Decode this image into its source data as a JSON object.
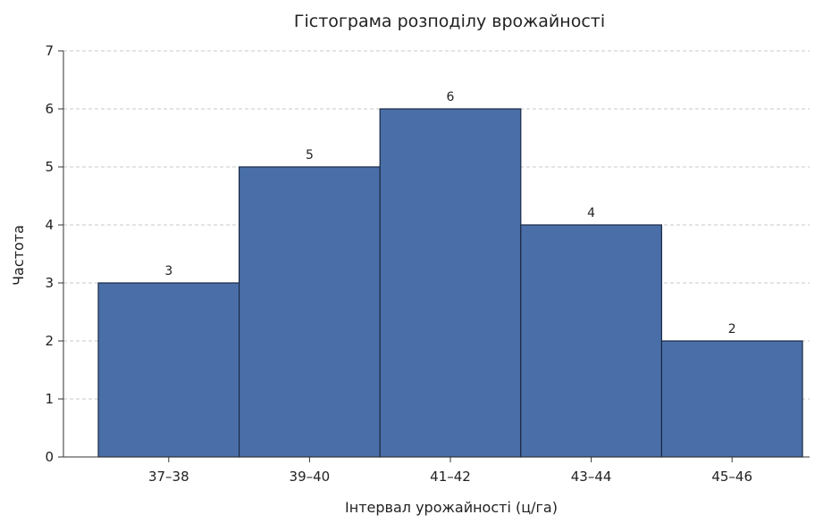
{
  "chart_data": {
    "type": "bar",
    "title": "Гістограма розподілу врожайності",
    "xlabel": "Інтервал урожайності (ц/га)",
    "ylabel": "Частота",
    "categories": [
      "37–38",
      "39–40",
      "41–42",
      "43–44",
      "45–46"
    ],
    "values": [
      3,
      5,
      6,
      4,
      2
    ],
    "ylim": [
      0,
      7
    ],
    "yticks": [
      0,
      1,
      2,
      3,
      4,
      5,
      6,
      7
    ],
    "grid": true,
    "bar_color": "#4a6fa8",
    "data_labels": true
  }
}
